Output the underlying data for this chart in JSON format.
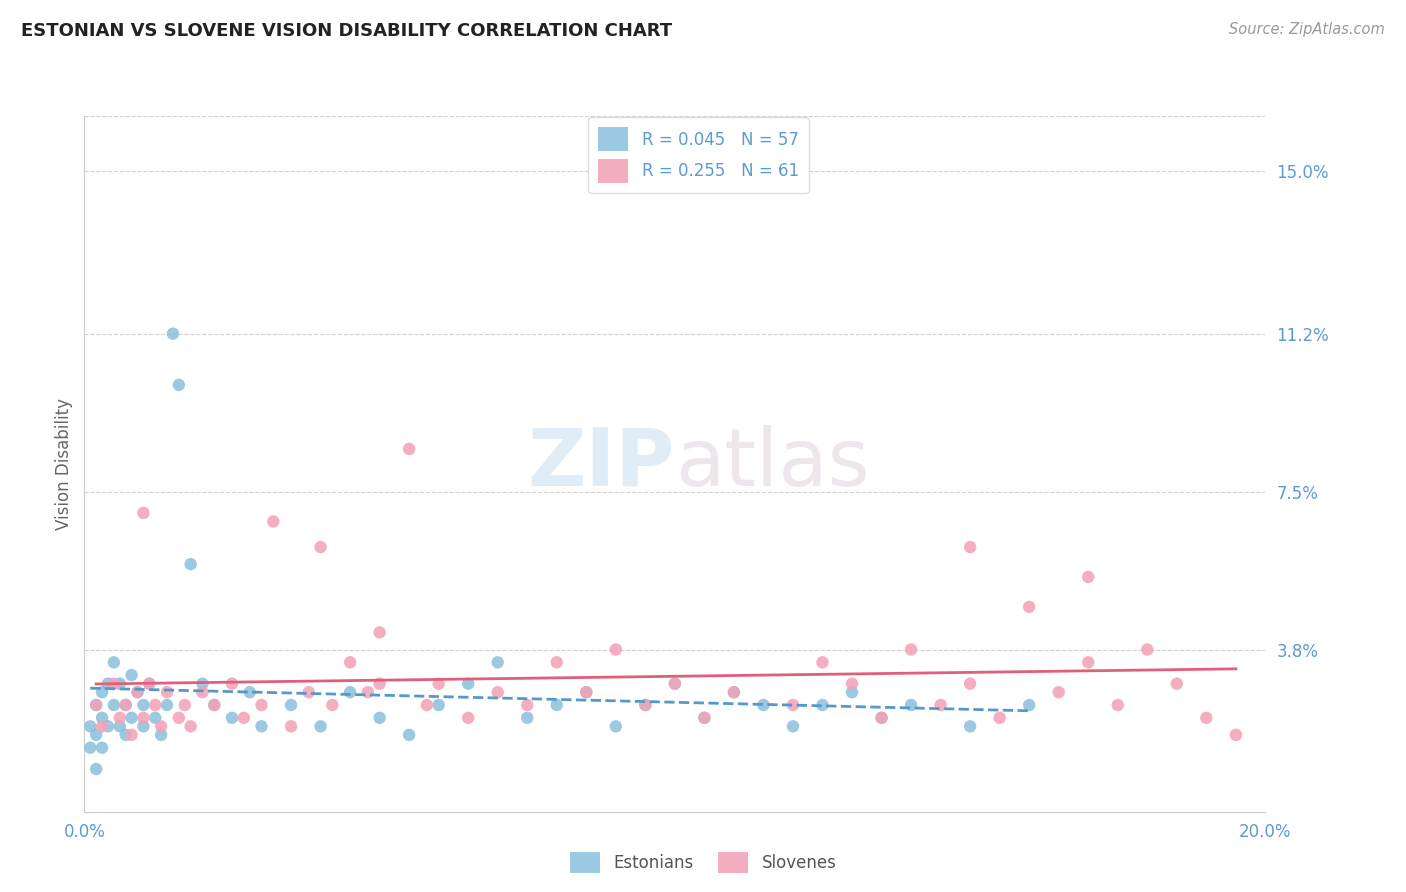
{
  "title": "ESTONIAN VS SLOVENE VISION DISABILITY CORRELATION CHART",
  "source": "Source: ZipAtlas.com",
  "ylabel": "Vision Disability",
  "estonian_color": "#7ab8d9",
  "slovene_color": "#f4a0b5",
  "estonian_line_color": "#5599cc",
  "slovene_line_color": "#e0607a",
  "background_color": "#ffffff",
  "grid_color": "#d0d0d0",
  "title_color": "#222222",
  "axis_label_color": "#5b9bd5",
  "watermark_color": "#ddeeff",
  "estonian_R": 0.045,
  "estonian_N": 57,
  "slovene_R": 0.255,
  "slovene_N": 61,
  "estonian_points_x": [
    0.001,
    0.001,
    0.002,
    0.002,
    0.002,
    0.003,
    0.003,
    0.003,
    0.004,
    0.004,
    0.005,
    0.005,
    0.006,
    0.006,
    0.007,
    0.007,
    0.008,
    0.008,
    0.009,
    0.01,
    0.01,
    0.011,
    0.012,
    0.013,
    0.014,
    0.015,
    0.016,
    0.018,
    0.02,
    0.022,
    0.025,
    0.028,
    0.03,
    0.035,
    0.04,
    0.045,
    0.05,
    0.055,
    0.06,
    0.065,
    0.07,
    0.075,
    0.08,
    0.085,
    0.09,
    0.095,
    0.1,
    0.105,
    0.11,
    0.115,
    0.12,
    0.125,
    0.13,
    0.135,
    0.14,
    0.15,
    0.16
  ],
  "estonian_points_y": [
    0.02,
    0.015,
    0.025,
    0.018,
    0.01,
    0.028,
    0.022,
    0.015,
    0.03,
    0.02,
    0.035,
    0.025,
    0.02,
    0.03,
    0.025,
    0.018,
    0.032,
    0.022,
    0.028,
    0.02,
    0.025,
    0.03,
    0.022,
    0.018,
    0.025,
    0.112,
    0.1,
    0.058,
    0.03,
    0.025,
    0.022,
    0.028,
    0.02,
    0.025,
    0.02,
    0.028,
    0.022,
    0.018,
    0.025,
    0.03,
    0.035,
    0.022,
    0.025,
    0.028,
    0.02,
    0.025,
    0.03,
    0.022,
    0.028,
    0.025,
    0.02,
    0.025,
    0.028,
    0.022,
    0.025,
    0.02,
    0.025
  ],
  "slovene_points_x": [
    0.002,
    0.003,
    0.005,
    0.006,
    0.007,
    0.008,
    0.009,
    0.01,
    0.011,
    0.012,
    0.013,
    0.014,
    0.016,
    0.017,
    0.018,
    0.02,
    0.022,
    0.025,
    0.027,
    0.03,
    0.032,
    0.035,
    0.038,
    0.04,
    0.042,
    0.045,
    0.048,
    0.05,
    0.055,
    0.058,
    0.06,
    0.065,
    0.07,
    0.075,
    0.08,
    0.085,
    0.09,
    0.095,
    0.1,
    0.105,
    0.11,
    0.12,
    0.125,
    0.13,
    0.135,
    0.14,
    0.145,
    0.15,
    0.155,
    0.16,
    0.165,
    0.17,
    0.175,
    0.18,
    0.185,
    0.19,
    0.195,
    0.01,
    0.05,
    0.15,
    0.17
  ],
  "slovene_points_y": [
    0.025,
    0.02,
    0.03,
    0.022,
    0.025,
    0.018,
    0.028,
    0.022,
    0.03,
    0.025,
    0.02,
    0.028,
    0.022,
    0.025,
    0.02,
    0.028,
    0.025,
    0.03,
    0.022,
    0.025,
    0.068,
    0.02,
    0.028,
    0.062,
    0.025,
    0.035,
    0.028,
    0.03,
    0.085,
    0.025,
    0.03,
    0.022,
    0.028,
    0.025,
    0.035,
    0.028,
    0.038,
    0.025,
    0.03,
    0.022,
    0.028,
    0.025,
    0.035,
    0.03,
    0.022,
    0.038,
    0.025,
    0.03,
    0.022,
    0.048,
    0.028,
    0.035,
    0.025,
    0.038,
    0.03,
    0.022,
    0.018,
    0.07,
    0.042,
    0.062,
    0.055
  ],
  "xlim": [
    0.0,
    0.2
  ],
  "ylim": [
    0.0,
    0.163
  ],
  "ytick_vals": [
    0.038,
    0.075,
    0.112,
    0.15
  ],
  "ytick_labels": [
    "3.8%",
    "7.5%",
    "11.2%",
    "15.0%"
  ],
  "xtick_vals": [
    0.0,
    0.05,
    0.1,
    0.15,
    0.2
  ],
  "xtick_labels": [
    "0.0%",
    "",
    "",
    "",
    "20.0%"
  ]
}
